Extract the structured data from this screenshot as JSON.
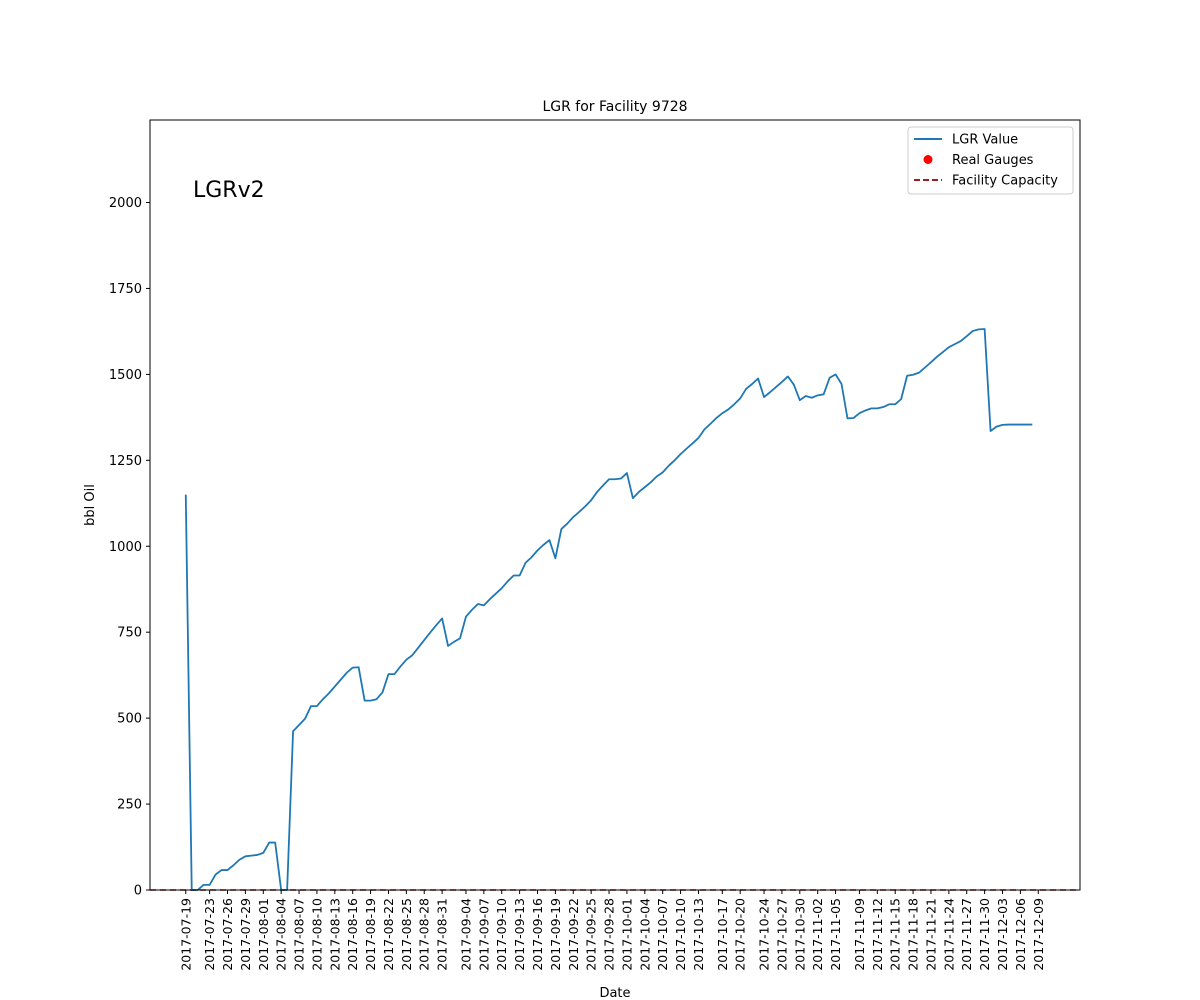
{
  "chart_data": {
    "type": "line",
    "title": "LGR for Facility 9728",
    "xlabel": "Date",
    "ylabel": "bbl Oil",
    "annotation": "LGRv2",
    "ylim": [
      0,
      2240
    ],
    "yticks": [
      0,
      250,
      500,
      750,
      1000,
      1250,
      1500,
      1750,
      2000
    ],
    "xlim": [
      "2017-07-13",
      "2017-12-16"
    ],
    "xticks": [
      "2017-07-19",
      "2017-07-23",
      "2017-07-26",
      "2017-07-29",
      "2017-08-01",
      "2017-08-04",
      "2017-08-07",
      "2017-08-10",
      "2017-08-13",
      "2017-08-16",
      "2017-08-19",
      "2017-08-22",
      "2017-08-25",
      "2017-08-28",
      "2017-08-31",
      "2017-09-04",
      "2017-09-07",
      "2017-09-10",
      "2017-09-13",
      "2017-09-16",
      "2017-09-19",
      "2017-09-22",
      "2017-09-25",
      "2017-09-28",
      "2017-10-01",
      "2017-10-04",
      "2017-10-07",
      "2017-10-10",
      "2017-10-13",
      "2017-10-17",
      "2017-10-20",
      "2017-10-24",
      "2017-10-27",
      "2017-10-30",
      "2017-11-02",
      "2017-11-05",
      "2017-11-09",
      "2017-11-12",
      "2017-11-15",
      "2017-11-18",
      "2017-11-21",
      "2017-11-24",
      "2017-11-27",
      "2017-11-30",
      "2017-12-03",
      "2017-12-06",
      "2017-12-09"
    ],
    "grid": false,
    "legend_position": "top-right",
    "legend": [
      {
        "label": "LGR Value",
        "kind": "line",
        "color": "#1f77b4"
      },
      {
        "label": "Real Gauges",
        "kind": "marker",
        "color": "#ff0000"
      },
      {
        "label": "Facility Capacity",
        "kind": "dashed",
        "color": "#8b0000"
      }
    ],
    "series": [
      {
        "name": "LGR Value",
        "color": "#1f77b4",
        "points": [
          [
            "2017-07-19",
            1150
          ],
          [
            "2017-07-20",
            0
          ],
          [
            "2017-07-21",
            0
          ],
          [
            "2017-07-22",
            15
          ],
          [
            "2017-07-23",
            15
          ],
          [
            "2017-07-24",
            45
          ],
          [
            "2017-07-25",
            58
          ],
          [
            "2017-07-26",
            58
          ],
          [
            "2017-07-27",
            72
          ],
          [
            "2017-07-28",
            88
          ],
          [
            "2017-07-29",
            98
          ],
          [
            "2017-07-30",
            100
          ],
          [
            "2017-07-31",
            102
          ],
          [
            "2017-08-01",
            108
          ],
          [
            "2017-08-02",
            138
          ],
          [
            "2017-08-03",
            138
          ],
          [
            "2017-08-04",
            0
          ],
          [
            "2017-08-05",
            0
          ],
          [
            "2017-08-06",
            462
          ],
          [
            "2017-08-07",
            480
          ],
          [
            "2017-08-08",
            498
          ],
          [
            "2017-08-09",
            535
          ],
          [
            "2017-08-10",
            535
          ],
          [
            "2017-08-11",
            555
          ],
          [
            "2017-08-12",
            572
          ],
          [
            "2017-08-13",
            592
          ],
          [
            "2017-08-14",
            612
          ],
          [
            "2017-08-15",
            632
          ],
          [
            "2017-08-16",
            647
          ],
          [
            "2017-08-17",
            648
          ],
          [
            "2017-08-18",
            551
          ],
          [
            "2017-08-19",
            551
          ],
          [
            "2017-08-20",
            555
          ],
          [
            "2017-08-21",
            575
          ],
          [
            "2017-08-22",
            628
          ],
          [
            "2017-08-23",
            628
          ],
          [
            "2017-08-24",
            650
          ],
          [
            "2017-08-25",
            670
          ],
          [
            "2017-08-26",
            683
          ],
          [
            "2017-08-27",
            705
          ],
          [
            "2017-08-28",
            727
          ],
          [
            "2017-08-29",
            749
          ],
          [
            "2017-08-30",
            770
          ],
          [
            "2017-08-31",
            790
          ],
          [
            "2017-09-01",
            710
          ],
          [
            "2017-09-02",
            722
          ],
          [
            "2017-09-03",
            732
          ],
          [
            "2017-09-04",
            795
          ],
          [
            "2017-09-05",
            815
          ],
          [
            "2017-09-06",
            832
          ],
          [
            "2017-09-07",
            828
          ],
          [
            "2017-09-08",
            846
          ],
          [
            "2017-09-09",
            862
          ],
          [
            "2017-09-10",
            878
          ],
          [
            "2017-09-11",
            898
          ],
          [
            "2017-09-12",
            915
          ],
          [
            "2017-09-13",
            915
          ],
          [
            "2017-09-14",
            952
          ],
          [
            "2017-09-15",
            968
          ],
          [
            "2017-09-16",
            988
          ],
          [
            "2017-09-17",
            1004
          ],
          [
            "2017-09-18",
            1018
          ],
          [
            "2017-09-19",
            965
          ],
          [
            "2017-09-20",
            1050
          ],
          [
            "2017-09-21",
            1066
          ],
          [
            "2017-09-22",
            1085
          ],
          [
            "2017-09-23",
            1100
          ],
          [
            "2017-09-24",
            1116
          ],
          [
            "2017-09-25",
            1134
          ],
          [
            "2017-09-26",
            1158
          ],
          [
            "2017-09-27",
            1177
          ],
          [
            "2017-09-28",
            1195
          ],
          [
            "2017-09-29",
            1195
          ],
          [
            "2017-09-30",
            1197
          ],
          [
            "2017-10-01",
            1213
          ],
          [
            "2017-10-02",
            1140
          ],
          [
            "2017-10-03",
            1158
          ],
          [
            "2017-10-04",
            1172
          ],
          [
            "2017-10-05",
            1186
          ],
          [
            "2017-10-06",
            1203
          ],
          [
            "2017-10-07",
            1215
          ],
          [
            "2017-10-08",
            1234
          ],
          [
            "2017-10-09",
            1250
          ],
          [
            "2017-10-10",
            1268
          ],
          [
            "2017-10-11",
            1284
          ],
          [
            "2017-10-12",
            1299
          ],
          [
            "2017-10-13",
            1315
          ],
          [
            "2017-10-14",
            1340
          ],
          [
            "2017-10-15",
            1356
          ],
          [
            "2017-10-16",
            1373
          ],
          [
            "2017-10-17",
            1387
          ],
          [
            "2017-10-18",
            1398
          ],
          [
            "2017-10-19",
            1413
          ],
          [
            "2017-10-20",
            1430
          ],
          [
            "2017-10-21",
            1458
          ],
          [
            "2017-10-22",
            1472
          ],
          [
            "2017-10-23",
            1488
          ],
          [
            "2017-10-24",
            1434
          ],
          [
            "2017-10-25",
            1448
          ],
          [
            "2017-10-26",
            1463
          ],
          [
            "2017-10-27",
            1478
          ],
          [
            "2017-10-28",
            1494
          ],
          [
            "2017-10-29",
            1470
          ],
          [
            "2017-10-30",
            1425
          ],
          [
            "2017-10-31",
            1437
          ],
          [
            "2017-11-01",
            1432
          ],
          [
            "2017-11-02",
            1439
          ],
          [
            "2017-11-03",
            1442
          ],
          [
            "2017-11-04",
            1490
          ],
          [
            "2017-11-05",
            1500
          ],
          [
            "2017-11-06",
            1472
          ],
          [
            "2017-11-07",
            1372
          ],
          [
            "2017-11-08",
            1373
          ],
          [
            "2017-11-09",
            1387
          ],
          [
            "2017-11-10",
            1395
          ],
          [
            "2017-11-11",
            1401
          ],
          [
            "2017-11-12",
            1401
          ],
          [
            "2017-11-13",
            1405
          ],
          [
            "2017-11-14",
            1413
          ],
          [
            "2017-11-15",
            1413
          ],
          [
            "2017-11-16",
            1428
          ],
          [
            "2017-11-17",
            1496
          ],
          [
            "2017-11-18",
            1499
          ],
          [
            "2017-11-19",
            1505
          ],
          [
            "2017-11-20",
            1520
          ],
          [
            "2017-11-21",
            1535
          ],
          [
            "2017-11-22",
            1551
          ],
          [
            "2017-11-23",
            1565
          ],
          [
            "2017-11-24",
            1579
          ],
          [
            "2017-11-25",
            1588
          ],
          [
            "2017-11-26",
            1597
          ],
          [
            "2017-11-27",
            1611
          ],
          [
            "2017-11-28",
            1626
          ],
          [
            "2017-11-29",
            1631
          ],
          [
            "2017-11-30",
            1632
          ],
          [
            "2017-12-01",
            1335
          ],
          [
            "2017-12-02",
            1348
          ],
          [
            "2017-12-03",
            1353
          ],
          [
            "2017-12-04",
            1354
          ],
          [
            "2017-12-05",
            1354
          ],
          [
            "2017-12-06",
            1354
          ],
          [
            "2017-12-07",
            1354
          ],
          [
            "2017-12-08",
            1354
          ]
        ]
      }
    ],
    "capacity": {
      "name": "Facility Capacity",
      "value": 0,
      "color": "#8b0000",
      "style": "dashed"
    },
    "gauges": {
      "name": "Real Gauges",
      "color": "#ff0000",
      "points": []
    }
  }
}
